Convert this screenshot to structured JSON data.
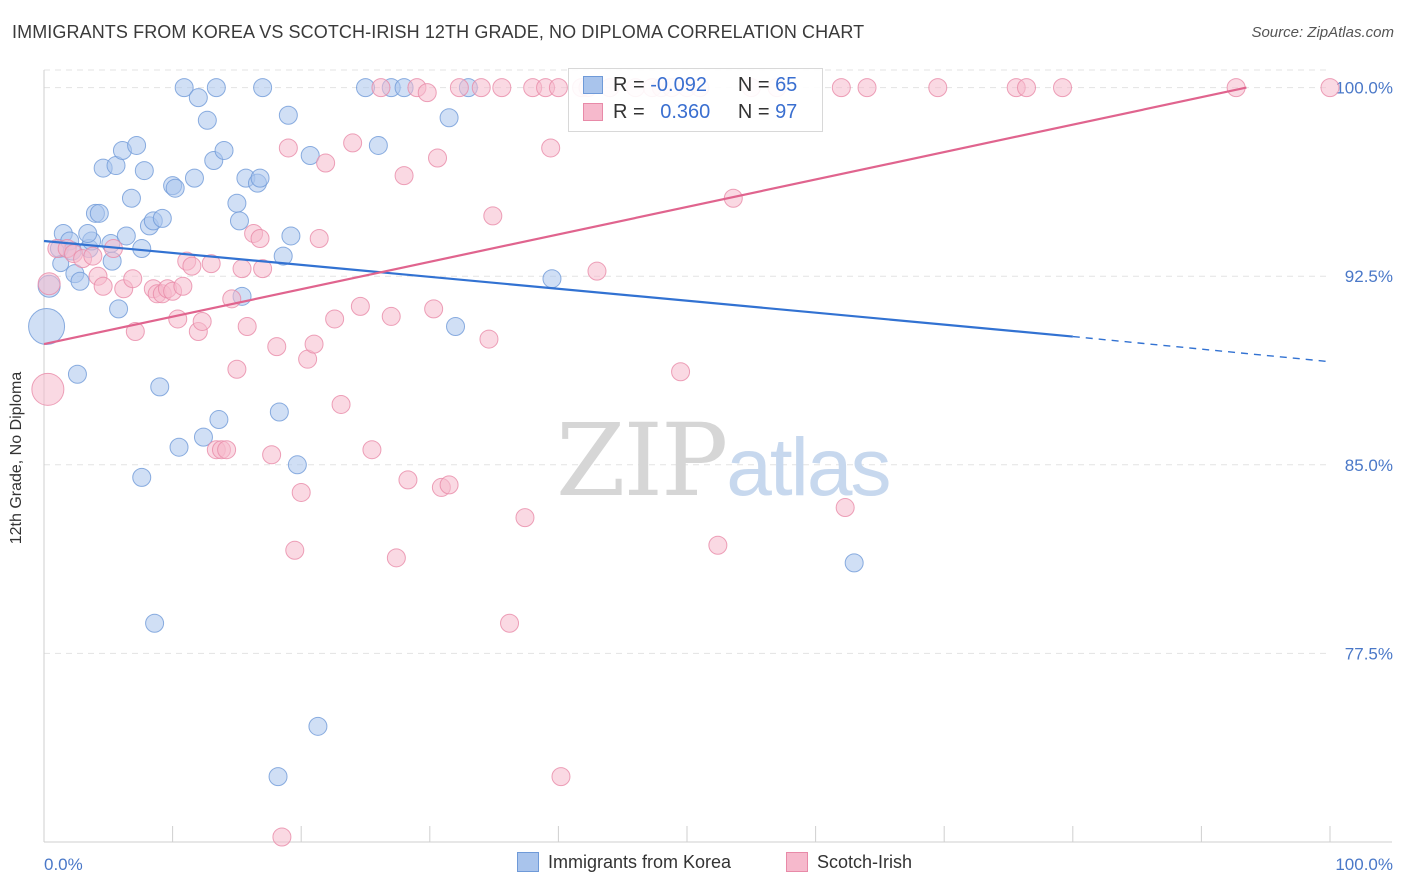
{
  "title": "IMMIGRANTS FROM KOREA VS SCOTCH-IRISH 12TH GRADE, NO DIPLOMA CORRELATION CHART",
  "source": "Source: ZipAtlas.com",
  "watermark": {
    "zip": "ZIP",
    "atlas": "atlas"
  },
  "legend_top": {
    "rows": [
      {
        "r_label": "R =",
        "r_value": "-0.092",
        "n_label": "N =",
        "n_value": "65"
      },
      {
        "r_label": "R =",
        "r_value": "0.360",
        "n_label": "N =",
        "n_value": "97"
      }
    ]
  },
  "colors": {
    "korea_fill": "#a9c4ec",
    "korea_stroke": "#6f9ad8",
    "korea_line": "#3272d2",
    "scotch_fill": "#f6b9cc",
    "scotch_stroke": "#e88aa8",
    "scotch_line": "#e0648e",
    "grid": "#e3e3e3",
    "tick_label": "#4a78c8"
  },
  "chart_data": {
    "type": "scatter",
    "title": "IMMIGRANTS FROM KOREA VS SCOTCH-IRISH 12TH GRADE, NO DIPLOMA CORRELATION CHART",
    "xlabel": "",
    "ylabel": "12th Grade, No Diploma",
    "xlim": [
      0,
      100
    ],
    "ylim": [
      70.0,
      100.7
    ],
    "x_tick_labels": [
      "0.0%",
      "100.0%"
    ],
    "y_ticks": [
      77.5,
      85.0,
      92.5,
      100.0
    ],
    "y_tick_labels": [
      "77.5%",
      "85.0%",
      "92.5%",
      "100.0%"
    ],
    "grid": true,
    "legend_position": "top-center",
    "series": [
      {
        "name": "Immigrants from Korea",
        "r": -0.092,
        "n": 65,
        "trend": {
          "x": [
            0,
            80
          ],
          "y": [
            93.9,
            90.1
          ],
          "dashed_to": [
            100,
            89.1
          ]
        },
        "points": [
          [
            0.2,
            90.5,
            18
          ],
          [
            0.4,
            92.1,
            11
          ],
          [
            1.2,
            93.6,
            9
          ],
          [
            1.3,
            93.0,
            8
          ],
          [
            1.5,
            94.2,
            9
          ],
          [
            2.0,
            93.9,
            9
          ],
          [
            2.2,
            93.5,
            9
          ],
          [
            2.4,
            92.6,
            9
          ],
          [
            2.6,
            88.6,
            9
          ],
          [
            2.8,
            92.3,
            9
          ],
          [
            3.5,
            93.6,
            9
          ],
          [
            3.7,
            93.9,
            9
          ],
          [
            3.4,
            94.2,
            9
          ],
          [
            4.0,
            95.0,
            9
          ],
          [
            4.3,
            95.0,
            9
          ],
          [
            4.6,
            96.8,
            9
          ],
          [
            5.2,
            93.8,
            9
          ],
          [
            5.3,
            93.1,
            9
          ],
          [
            5.6,
            96.9,
            9
          ],
          [
            5.8,
            91.2,
            9
          ],
          [
            6.1,
            97.5,
            9
          ],
          [
            6.4,
            94.1,
            9
          ],
          [
            6.8,
            95.6,
            9
          ],
          [
            7.2,
            97.7,
            9
          ],
          [
            7.6,
            93.6,
            9
          ],
          [
            7.8,
            96.7,
            9
          ],
          [
            8.2,
            94.5,
            9
          ],
          [
            8.5,
            94.7,
            9
          ],
          [
            9.0,
            88.1,
            9
          ],
          [
            9.2,
            94.8,
            9
          ],
          [
            10.0,
            96.1,
            9
          ],
          [
            10.2,
            96.0,
            9
          ],
          [
            10.5,
            85.7,
            9
          ],
          [
            10.9,
            100.0,
            9
          ],
          [
            11.7,
            96.4,
            9
          ],
          [
            12.0,
            99.6,
            9
          ],
          [
            12.4,
            86.1,
            9
          ],
          [
            12.7,
            98.7,
            9
          ],
          [
            13.2,
            97.1,
            9
          ],
          [
            13.4,
            100.0,
            9
          ],
          [
            13.6,
            86.8,
            9
          ],
          [
            14.0,
            97.5,
            9
          ],
          [
            15.0,
            95.4,
            9
          ],
          [
            15.2,
            94.7,
            9
          ],
          [
            15.4,
            91.7,
            9
          ],
          [
            15.7,
            96.4,
            9
          ],
          [
            16.6,
            96.2,
            9
          ],
          [
            16.8,
            96.4,
            9
          ],
          [
            17.0,
            100.0,
            9
          ],
          [
            18.2,
            72.6,
            9
          ],
          [
            18.3,
            87.1,
            9
          ],
          [
            18.6,
            93.3,
            9
          ],
          [
            19.0,
            98.9,
            9
          ],
          [
            19.2,
            94.1,
            9
          ],
          [
            19.7,
            85.0,
            9
          ],
          [
            20.7,
            97.3,
            9
          ],
          [
            25.0,
            100.0,
            9
          ],
          [
            26.0,
            97.7,
            9
          ],
          [
            27.0,
            100.0,
            9
          ],
          [
            28.0,
            100.0,
            9
          ],
          [
            31.5,
            98.8,
            9
          ],
          [
            32.0,
            90.5,
            9
          ],
          [
            33.0,
            100.0,
            9
          ],
          [
            39.5,
            92.4,
            9
          ],
          [
            63.0,
            81.1,
            9
          ],
          [
            7.6,
            84.5,
            9
          ],
          [
            8.6,
            78.7,
            9
          ],
          [
            21.3,
            74.6,
            9
          ]
        ]
      },
      {
        "name": "Scotch-Irish",
        "r": 0.36,
        "n": 97,
        "trend": {
          "x": [
            0,
            93.5
          ],
          "y": [
            89.8,
            100.0
          ]
        },
        "points": [
          [
            0.3,
            88.0,
            16
          ],
          [
            0.4,
            92.2,
            11
          ],
          [
            1.0,
            93.6,
            9
          ],
          [
            1.8,
            93.6,
            9
          ],
          [
            2.3,
            93.4,
            9
          ],
          [
            3.0,
            93.2,
            9
          ],
          [
            3.8,
            93.3,
            9
          ],
          [
            4.2,
            92.5,
            9
          ],
          [
            4.6,
            92.1,
            9
          ],
          [
            5.4,
            93.6,
            9
          ],
          [
            6.2,
            92.0,
            9
          ],
          [
            6.9,
            92.4,
            9
          ],
          [
            7.1,
            90.3,
            9
          ],
          [
            8.5,
            92.0,
            9
          ],
          [
            8.8,
            91.8,
            9
          ],
          [
            9.2,
            91.8,
            9
          ],
          [
            9.6,
            92.0,
            9
          ],
          [
            10.0,
            91.9,
            9
          ],
          [
            10.4,
            90.8,
            9
          ],
          [
            10.8,
            92.1,
            9
          ],
          [
            11.1,
            93.1,
            9
          ],
          [
            11.5,
            92.9,
            9
          ],
          [
            12.0,
            90.3,
            9
          ],
          [
            12.3,
            90.7,
            9
          ],
          [
            13.0,
            93.0,
            9
          ],
          [
            13.4,
            85.6,
            9
          ],
          [
            13.8,
            85.6,
            9
          ],
          [
            14.2,
            85.6,
            9
          ],
          [
            14.6,
            91.6,
            9
          ],
          [
            15.0,
            88.8,
            9
          ],
          [
            15.4,
            92.8,
            9
          ],
          [
            15.8,
            90.5,
            9
          ],
          [
            16.3,
            94.2,
            9
          ],
          [
            16.8,
            94.0,
            9
          ],
          [
            17.0,
            92.8,
            9
          ],
          [
            17.7,
            85.4,
            9
          ],
          [
            18.1,
            89.7,
            9
          ],
          [
            18.5,
            70.2,
            9
          ],
          [
            19.0,
            97.6,
            9
          ],
          [
            19.5,
            81.6,
            9
          ],
          [
            20.0,
            83.9,
            9
          ],
          [
            20.5,
            89.2,
            9
          ],
          [
            21.0,
            89.8,
            9
          ],
          [
            21.4,
            94.0,
            9
          ],
          [
            21.9,
            97.0,
            9
          ],
          [
            22.6,
            90.8,
            9
          ],
          [
            23.1,
            87.4,
            9
          ],
          [
            24.0,
            97.8,
            9
          ],
          [
            24.6,
            91.3,
            9
          ],
          [
            25.5,
            85.6,
            9
          ],
          [
            26.2,
            100.0,
            9
          ],
          [
            27.0,
            90.9,
            9
          ],
          [
            27.4,
            81.3,
            9
          ],
          [
            28.0,
            96.5,
            9
          ],
          [
            28.3,
            84.4,
            9
          ],
          [
            29.0,
            100.0,
            9
          ],
          [
            29.8,
            99.8,
            9
          ],
          [
            30.3,
            91.2,
            9
          ],
          [
            30.6,
            97.2,
            9
          ],
          [
            30.9,
            84.1,
            9
          ],
          [
            31.5,
            84.2,
            9
          ],
          [
            32.3,
            100.0,
            9
          ],
          [
            34.0,
            100.0,
            9
          ],
          [
            34.6,
            90.0,
            9
          ],
          [
            34.9,
            94.9,
            9
          ],
          [
            35.6,
            100.0,
            9
          ],
          [
            36.2,
            78.7,
            9
          ],
          [
            37.4,
            82.9,
            9
          ],
          [
            38.0,
            100.0,
            9
          ],
          [
            39.0,
            100.0,
            9
          ],
          [
            39.4,
            97.6,
            9
          ],
          [
            40.0,
            100.0,
            9
          ],
          [
            40.2,
            72.6,
            9
          ],
          [
            41.8,
            100.0,
            9
          ],
          [
            42.3,
            100.0,
            9
          ],
          [
            43.0,
            92.7,
            9
          ],
          [
            44.0,
            100.0,
            9
          ],
          [
            46.0,
            100.0,
            9
          ],
          [
            47.3,
            100.0,
            9
          ],
          [
            48.0,
            100.0,
            9
          ],
          [
            48.8,
            100.0,
            9
          ],
          [
            49.5,
            88.7,
            9
          ],
          [
            50.0,
            100.0,
            9
          ],
          [
            51.0,
            100.0,
            9
          ],
          [
            52.4,
            81.8,
            9
          ],
          [
            53.6,
            95.6,
            9
          ],
          [
            55.0,
            100.0,
            9
          ],
          [
            57.0,
            100.0,
            9
          ],
          [
            62.0,
            100.0,
            9
          ],
          [
            62.3,
            83.3,
            9
          ],
          [
            64.0,
            100.0,
            9
          ],
          [
            69.5,
            100.0,
            9
          ],
          [
            75.6,
            100.0,
            9
          ],
          [
            76.4,
            100.0,
            9
          ],
          [
            79.2,
            100.0,
            9
          ],
          [
            92.7,
            100.0,
            9
          ],
          [
            100.0,
            100.0,
            9
          ]
        ]
      }
    ]
  },
  "bottom_legend": [
    {
      "label": "Immigrants from Korea"
    },
    {
      "label": "Scotch-Irish"
    }
  ]
}
